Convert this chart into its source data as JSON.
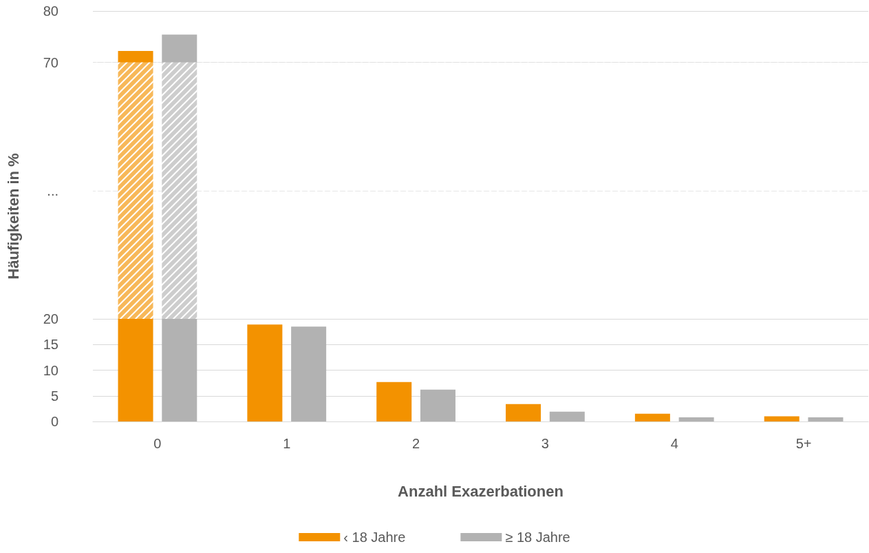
{
  "chart_data": {
    "type": "bar",
    "xlabel": "Anzahl Exazerbationen",
    "ylabel": "Häufigkeiten in %",
    "categories": [
      "0",
      "1",
      "2",
      "3",
      "4",
      "5+"
    ],
    "series": [
      {
        "name": "‹ 18 Jahre",
        "color": "#f39200",
        "values": [
          72.2,
          18.9,
          7.7,
          3.4,
          1.5,
          1.0
        ]
      },
      {
        "name": "≥ 18 Jahre",
        "color": "#b2b2b2",
        "values": [
          75.4,
          18.5,
          6.2,
          1.9,
          0.8,
          0.8
        ]
      }
    ],
    "ylim": [
      0,
      80
    ],
    "yticks": [
      0,
      5,
      10,
      15,
      20,
      {
        "value": 45,
        "label": "..."
      },
      70,
      80
    ],
    "bands": [
      {
        "axis": "y",
        "from": 20,
        "to": 70,
        "color": "#ffffff"
      }
    ],
    "grid": "y",
    "legend": "bottom"
  }
}
